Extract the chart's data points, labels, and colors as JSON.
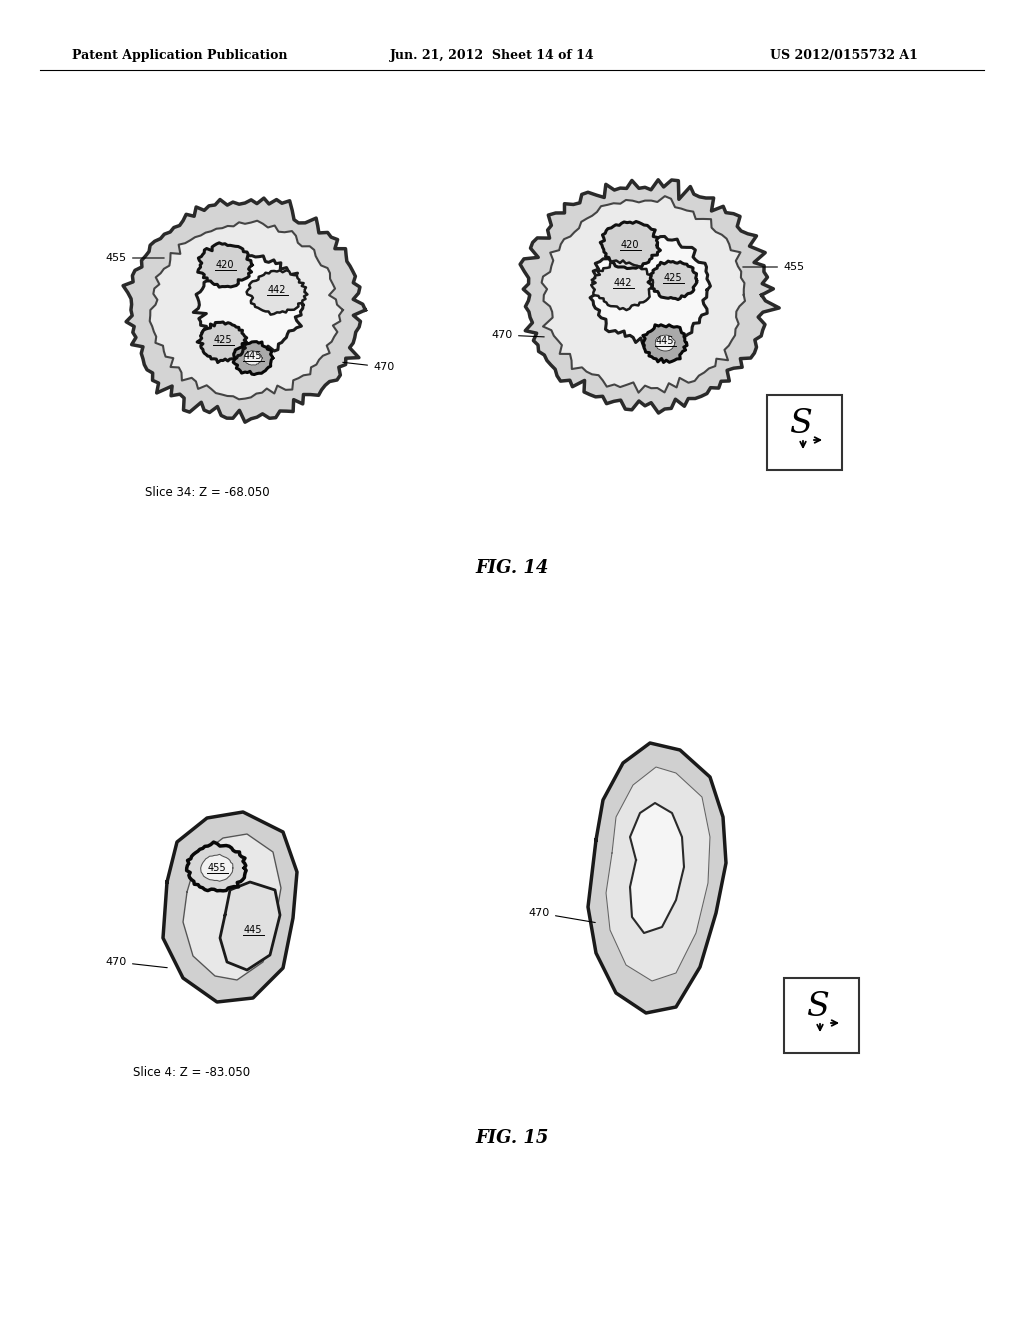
{
  "header_left": "Patent Application Publication",
  "header_mid": "Jun. 21, 2012  Sheet 14 of 14",
  "header_right": "US 2012/0155732 A1",
  "fig14_caption": "FIG. 14",
  "fig15_caption": "FIG. 15",
  "slice34_label": "Slice 34: Z = -68.050",
  "slice4_label": "Slice 4: Z = -83.050",
  "bg_color": "#ffffff",
  "line_color": "#000000"
}
